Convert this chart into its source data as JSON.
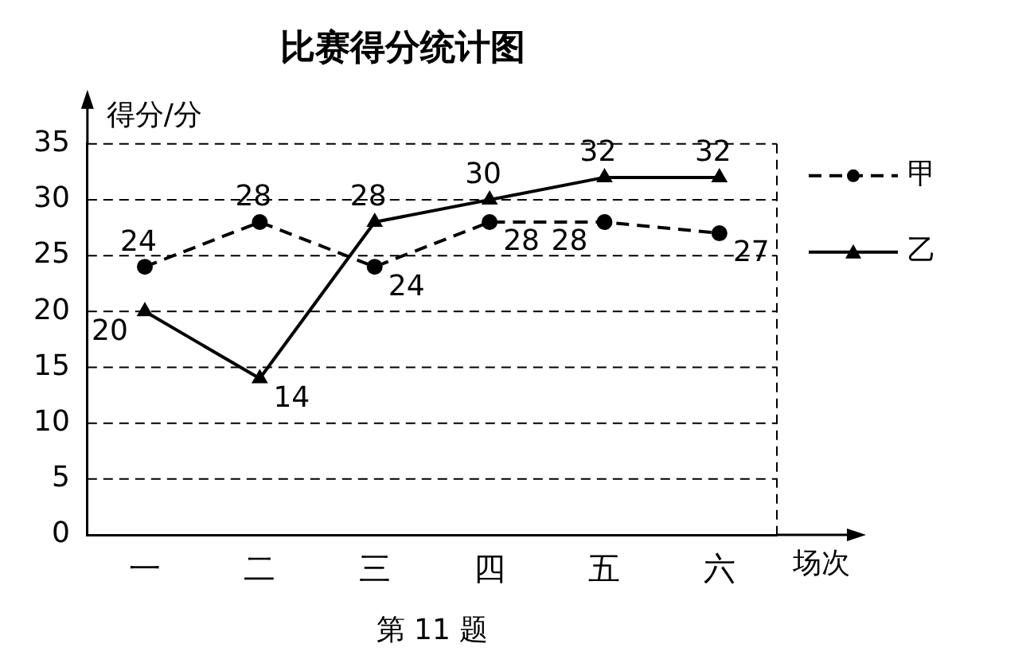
{
  "chart_data": {
    "type": "line",
    "title": "比赛得分统计图",
    "ylabel": "得分/分",
    "xlabel": "场次",
    "categories": [
      "一",
      "二",
      "三",
      "四",
      "五",
      "六"
    ],
    "series": [
      {
        "name": "甲",
        "color": "#000000",
        "values": [
          24,
          28,
          24,
          28,
          28,
          27
        ],
        "line_style": "dashed",
        "marker": "circle"
      },
      {
        "name": "乙",
        "color": "#000000",
        "values": [
          20,
          14,
          28,
          30,
          32,
          32
        ],
        "line_style": "solid",
        "marker": "triangle"
      }
    ],
    "ylim": [
      0,
      35
    ],
    "yticks": [
      0,
      5,
      10,
      15,
      20,
      25,
      30,
      35
    ],
    "grid": "y",
    "legend": "right",
    "data_labels": true,
    "annotations": [
      "第 11 题"
    ]
  }
}
